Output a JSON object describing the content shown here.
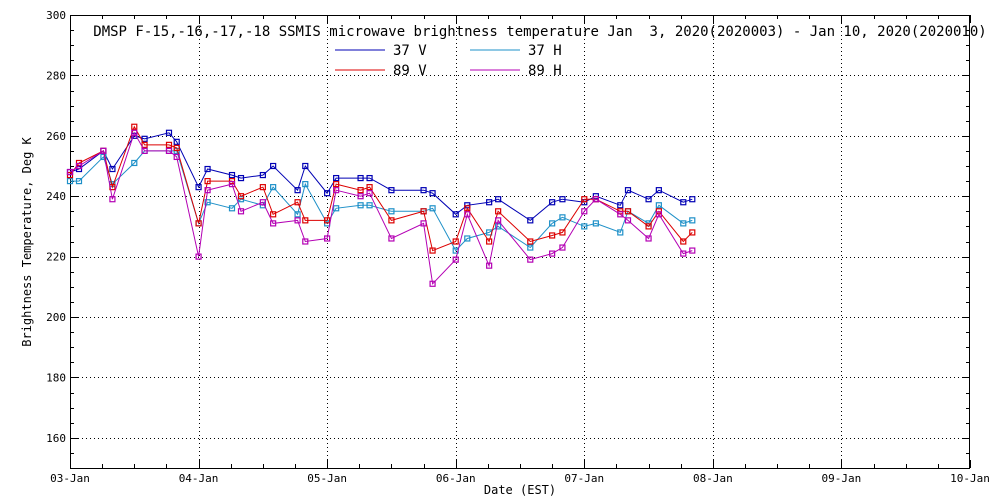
{
  "chart_data": {
    "type": "line",
    "title": "DMSP F-15,-16,-17,-18 SSMIS microwave brightness temperature Jan  3, 2020(2020003) - Jan 10, 2020(2020010)",
    "xlabel": "Date (EST)",
    "ylabel": "Brightness Temperature, Deg K",
    "xlim": [
      0,
      7
    ],
    "ylim": [
      150,
      300
    ],
    "x_ticks": [
      {
        "value": 0,
        "label": "03-Jan"
      },
      {
        "value": 1,
        "label": "04-Jan"
      },
      {
        "value": 2,
        "label": "05-Jan"
      },
      {
        "value": 3,
        "label": "06-Jan"
      },
      {
        "value": 4,
        "label": "07-Jan"
      },
      {
        "value": 5,
        "label": "08-Jan"
      },
      {
        "value": 6,
        "label": "09-Jan"
      },
      {
        "value": 7,
        "label": "10-Jan"
      }
    ],
    "y_ticks": [
      160,
      180,
      200,
      220,
      240,
      260,
      280,
      300
    ],
    "grid": true,
    "legend_position": "top-center",
    "series": [
      {
        "name": "37 V",
        "color": "#0000b4",
        "points": [
          [
            0.0,
            248
          ],
          [
            0.07,
            249
          ],
          [
            0.26,
            255
          ],
          [
            0.33,
            249
          ],
          [
            0.5,
            260
          ],
          [
            0.58,
            259
          ],
          [
            0.77,
            261
          ],
          [
            0.83,
            258
          ],
          [
            1.0,
            243
          ],
          [
            1.07,
            249
          ],
          [
            1.26,
            247
          ],
          [
            1.33,
            246
          ],
          [
            1.5,
            247
          ],
          [
            1.58,
            250
          ],
          [
            1.77,
            242
          ],
          [
            1.83,
            250
          ],
          [
            2.0,
            241
          ],
          [
            2.07,
            246
          ],
          [
            2.26,
            246
          ],
          [
            2.33,
            246
          ],
          [
            2.5,
            242
          ],
          [
            2.75,
            242
          ],
          [
            2.82,
            241
          ],
          [
            3.0,
            234
          ],
          [
            3.09,
            237
          ],
          [
            3.26,
            238
          ],
          [
            3.33,
            239
          ],
          [
            3.58,
            232
          ],
          [
            3.75,
            238
          ],
          [
            3.83,
            239
          ],
          [
            4.0,
            238
          ],
          [
            4.09,
            240
          ],
          [
            4.28,
            237
          ],
          [
            4.34,
            242
          ],
          [
            4.5,
            239
          ],
          [
            4.58,
            242
          ],
          [
            4.77,
            238
          ],
          [
            4.84,
            239
          ]
        ]
      },
      {
        "name": "37 H",
        "color": "#1e90c8",
        "points": [
          [
            0.0,
            245
          ],
          [
            0.07,
            245
          ],
          [
            0.26,
            253
          ],
          [
            0.33,
            244
          ],
          [
            0.5,
            251
          ],
          [
            0.58,
            255
          ],
          [
            0.77,
            255
          ],
          [
            0.83,
            255
          ],
          [
            1.0,
            231
          ],
          [
            1.07,
            238
          ],
          [
            1.26,
            236
          ],
          [
            1.33,
            239
          ],
          [
            1.5,
            237
          ],
          [
            1.58,
            243
          ],
          [
            1.77,
            234
          ],
          [
            1.83,
            244
          ],
          [
            2.0,
            231
          ],
          [
            2.07,
            236
          ],
          [
            2.26,
            237
          ],
          [
            2.33,
            237
          ],
          [
            2.5,
            235
          ],
          [
            2.75,
            235
          ],
          [
            2.82,
            236
          ],
          [
            3.0,
            222
          ],
          [
            3.09,
            226
          ],
          [
            3.26,
            228
          ],
          [
            3.33,
            230
          ],
          [
            3.58,
            223
          ],
          [
            3.75,
            231
          ],
          [
            3.83,
            233
          ],
          [
            4.0,
            230
          ],
          [
            4.09,
            231
          ],
          [
            4.28,
            228
          ],
          [
            4.34,
            235
          ],
          [
            4.5,
            231
          ],
          [
            4.58,
            237
          ],
          [
            4.77,
            231
          ],
          [
            4.84,
            232
          ]
        ]
      },
      {
        "name": "89 V",
        "color": "#dc0000",
        "points": [
          [
            0.0,
            247
          ],
          [
            0.07,
            251
          ],
          [
            0.26,
            255
          ],
          [
            0.33,
            243
          ],
          [
            0.5,
            263
          ],
          [
            0.58,
            257
          ],
          [
            0.77,
            257
          ],
          [
            0.83,
            256
          ],
          [
            1.0,
            231
          ],
          [
            1.07,
            245
          ],
          [
            1.26,
            245
          ],
          [
            1.33,
            240
          ],
          [
            1.5,
            243
          ],
          [
            1.58,
            234
          ],
          [
            1.77,
            238
          ],
          [
            1.83,
            232
          ],
          [
            2.0,
            232
          ],
          [
            2.07,
            244
          ],
          [
            2.26,
            242
          ],
          [
            2.33,
            243
          ],
          [
            2.5,
            232
          ],
          [
            2.75,
            235
          ],
          [
            2.82,
            222
          ],
          [
            3.0,
            225
          ],
          [
            3.09,
            236
          ],
          [
            3.26,
            225
          ],
          [
            3.33,
            235
          ],
          [
            3.58,
            225
          ],
          [
            3.75,
            227
          ],
          [
            3.83,
            228
          ],
          [
            4.0,
            239
          ],
          [
            4.09,
            239
          ],
          [
            4.28,
            235
          ],
          [
            4.34,
            235
          ],
          [
            4.5,
            230
          ],
          [
            4.58,
            235
          ],
          [
            4.77,
            225
          ],
          [
            4.84,
            228
          ]
        ]
      },
      {
        "name": "89 H",
        "color": "#b400b4",
        "points": [
          [
            0.0,
            248
          ],
          [
            0.07,
            250
          ],
          [
            0.26,
            255
          ],
          [
            0.33,
            239
          ],
          [
            0.5,
            261
          ],
          [
            0.58,
            255
          ],
          [
            0.77,
            255
          ],
          [
            0.83,
            253
          ],
          [
            1.0,
            220
          ],
          [
            1.07,
            242
          ],
          [
            1.26,
            244
          ],
          [
            1.33,
            235
          ],
          [
            1.5,
            238
          ],
          [
            1.58,
            231
          ],
          [
            1.77,
            232
          ],
          [
            1.83,
            225
          ],
          [
            2.0,
            226
          ],
          [
            2.07,
            242
          ],
          [
            2.26,
            240
          ],
          [
            2.33,
            241
          ],
          [
            2.5,
            226
          ],
          [
            2.75,
            231
          ],
          [
            2.82,
            211
          ],
          [
            3.0,
            219
          ],
          [
            3.09,
            234
          ],
          [
            3.26,
            217
          ],
          [
            3.33,
            232
          ],
          [
            3.58,
            219
          ],
          [
            3.75,
            221
          ],
          [
            3.83,
            223
          ],
          [
            4.0,
            235
          ],
          [
            4.09,
            239
          ],
          [
            4.28,
            234
          ],
          [
            4.34,
            232
          ],
          [
            4.5,
            226
          ],
          [
            4.58,
            234
          ],
          [
            4.77,
            221
          ],
          [
            4.84,
            222
          ]
        ]
      }
    ]
  }
}
